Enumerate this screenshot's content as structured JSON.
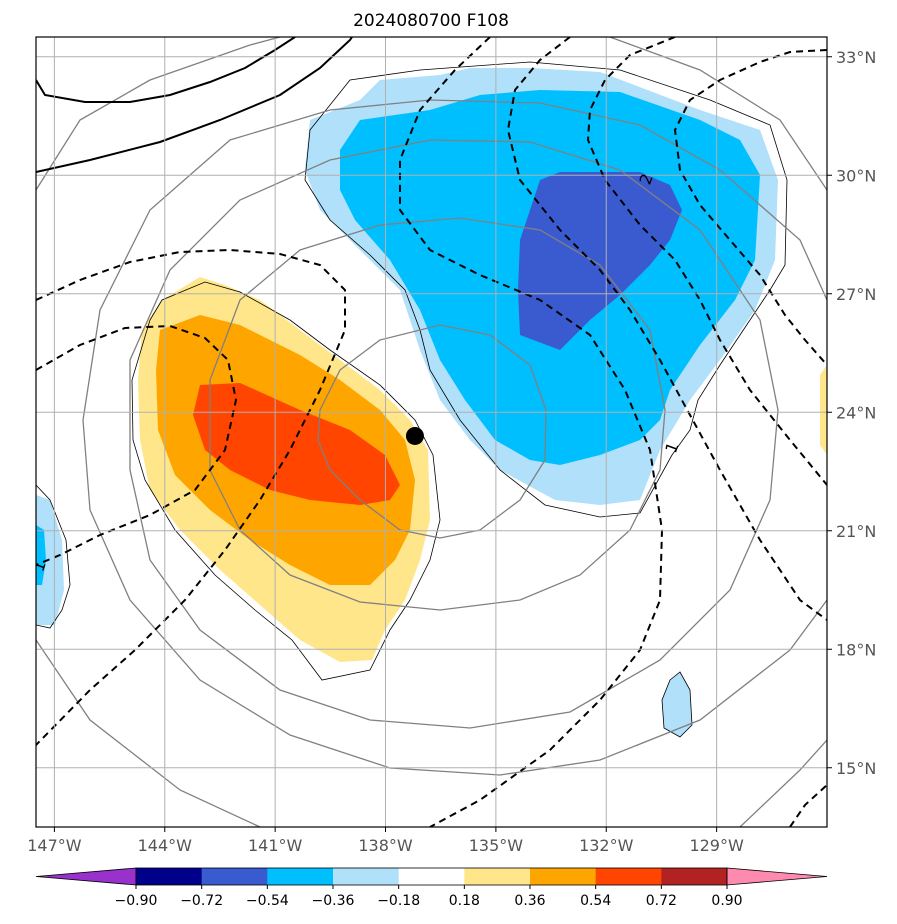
{
  "chart_data": {
    "type": "contour-map",
    "title": "2024080700 F108",
    "xlim": [
      -147.5,
      -126
    ],
    "ylim": [
      13.5,
      33.5
    ],
    "x_ticks": [
      {
        "value": -147,
        "label": "147°W"
      },
      {
        "value": -144,
        "label": "144°W"
      },
      {
        "value": -141,
        "label": "141°W"
      },
      {
        "value": -138,
        "label": "138°W"
      },
      {
        "value": -135,
        "label": "135°W"
      },
      {
        "value": -132,
        "label": "132°W"
      },
      {
        "value": -129,
        "label": "129°W"
      }
    ],
    "y_ticks": [
      {
        "value": 33,
        "label": "33°N"
      },
      {
        "value": 30,
        "label": "30°N"
      },
      {
        "value": 27,
        "label": "27°N"
      },
      {
        "value": 24,
        "label": "24°N"
      },
      {
        "value": 21,
        "label": "21°N"
      },
      {
        "value": 18,
        "label": "18°N"
      },
      {
        "value": 15,
        "label": "15°N"
      }
    ],
    "grid": true,
    "colorbar": {
      "position": "bottom",
      "extend": "both",
      "boundaries": [
        -0.9,
        -0.72,
        -0.54,
        -0.36,
        -0.18,
        0.18,
        0.36,
        0.54,
        0.72,
        0.9
      ],
      "labels": [
        "−0.90",
        "−0.72",
        "−0.54",
        "−0.36",
        "−0.18",
        "0.18",
        "0.36",
        "0.54",
        "0.72",
        "0.90"
      ],
      "colors": [
        "#9932cc",
        "#00008b",
        "#3a5bd0",
        "#00bfff",
        "#b0e0fa",
        "#ffffff",
        "#ffe68a",
        "#ffa500",
        "#ff4500",
        "#b22222",
        "#ff8ab0"
      ]
    },
    "storm_center": {
      "lon": -137.2,
      "lat": 23.4
    },
    "contour_labels": [
      {
        "text": "2",
        "lon": -130.9,
        "lat": 29.9
      },
      {
        "text": "1",
        "lon": -130.2,
        "lat": 23.1
      },
      {
        "text": "1",
        "lon": -147.4,
        "lat": 20.1
      }
    ],
    "positive_anomaly": {
      "levels": [
        0.18,
        0.36,
        0.54
      ],
      "peak_lon": -140.5,
      "peak_lat": 23.2
    },
    "negative_anomaly": {
      "levels": [
        -0.18,
        -0.36,
        -0.54
      ],
      "peak_lon": -133.5,
      "peak_lat": 28.0
    }
  }
}
